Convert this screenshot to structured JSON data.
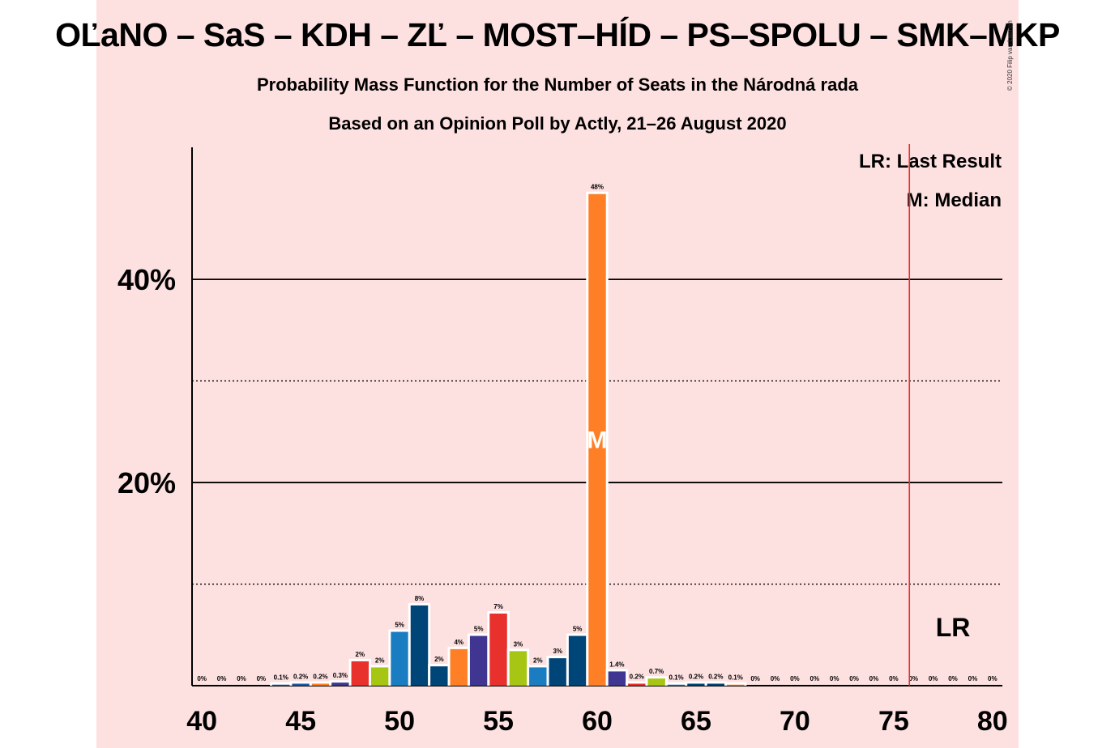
{
  "title": "OĽaNO – SaS – KDH – ZĽ – MOST–HÍD – PS–SPOLU – SMK–MKP",
  "subtitle_1": "Probability Mass Function for the Number of Seats in the Národná rada",
  "subtitle_2": "Based on an Opinion Poll by Actly, 21–26 August 2020",
  "copyright": "© 2020 Filip van Laenen",
  "legend": {
    "last_result": "LR: Last Result",
    "median": "M: Median"
  },
  "markers": {
    "last_result_label": "LR",
    "median_label": "M"
  },
  "chart_data": {
    "type": "bar",
    "x": [
      40,
      41,
      42,
      43,
      44,
      45,
      46,
      47,
      48,
      49,
      50,
      51,
      52,
      53,
      54,
      55,
      56,
      57,
      58,
      59,
      60,
      61,
      62,
      63,
      64,
      65,
      66,
      67,
      68,
      69,
      70,
      71,
      72,
      73,
      74,
      75,
      76,
      77,
      78,
      79,
      80
    ],
    "values": [
      0,
      0,
      0,
      0,
      0.1,
      0.2,
      0.2,
      0.3,
      2.4,
      1.8,
      5.3,
      7.9,
      1.9,
      3.6,
      4.9,
      7.1,
      3.4,
      1.8,
      2.7,
      4.9,
      48.4,
      1.4,
      0.2,
      0.7,
      0.1,
      0.2,
      0.2,
      0.1,
      0,
      0,
      0,
      0,
      0,
      0,
      0,
      0,
      0,
      0,
      0,
      0,
      0
    ],
    "labels": [
      "0%",
      "0%",
      "0%",
      "0%",
      "0.1%",
      "0.2%",
      "0.2%",
      "0.3%",
      "2%",
      "2%",
      "5%",
      "8%",
      "2%",
      "4%",
      "5%",
      "7%",
      "3%",
      "2%",
      "3%",
      "5%",
      "48%",
      "1.4%",
      "0.2%",
      "0.7%",
      "0.1%",
      "0.2%",
      "0.2%",
      "0.1%",
      "0%",
      "0%",
      "0%",
      "0%",
      "0%",
      "0%",
      "0%",
      "0%",
      "0%",
      "0%",
      "0%",
      "0%",
      "0%"
    ],
    "colors": [
      "#1f5aa8",
      "#1f5aa8",
      "#1f5aa8",
      "#1f5aa8",
      "#1f5aa8",
      "#1f5aa8",
      "#ff7f27",
      "#403590",
      "#e8302c",
      "#a7c614",
      "#1a7cc1",
      "#004578",
      "#004578",
      "#ff7f27",
      "#403590",
      "#e8302c",
      "#a7c614",
      "#1a7cc1",
      "#004578",
      "#004578",
      "#ff7f27",
      "#403590",
      "#e8302c",
      "#a7c614",
      "#1a7cc1",
      "#004578",
      "#004578",
      "#ff7f27",
      "#403590",
      "#e8302c",
      "#a7c614",
      "#1a7cc1",
      "#004578",
      "#004578",
      "#ff7f27",
      "#403590",
      "#e8302c",
      "#a7c614",
      "#1a7cc1",
      "#004578",
      "#004578"
    ],
    "x_ticks": [
      40,
      45,
      50,
      55,
      60,
      65,
      70,
      75,
      80
    ],
    "y_ticks": [
      {
        "value": 20,
        "label": "20%"
      },
      {
        "value": 40,
        "label": "40%"
      }
    ],
    "y_minor_ticks": [
      10,
      30
    ],
    "ylim": [
      0,
      53
    ],
    "xlim": [
      39.5,
      80.5
    ],
    "median": 60,
    "last_result": 76,
    "last_result_line_color": "#e8302c",
    "legend_position": "top-right"
  }
}
